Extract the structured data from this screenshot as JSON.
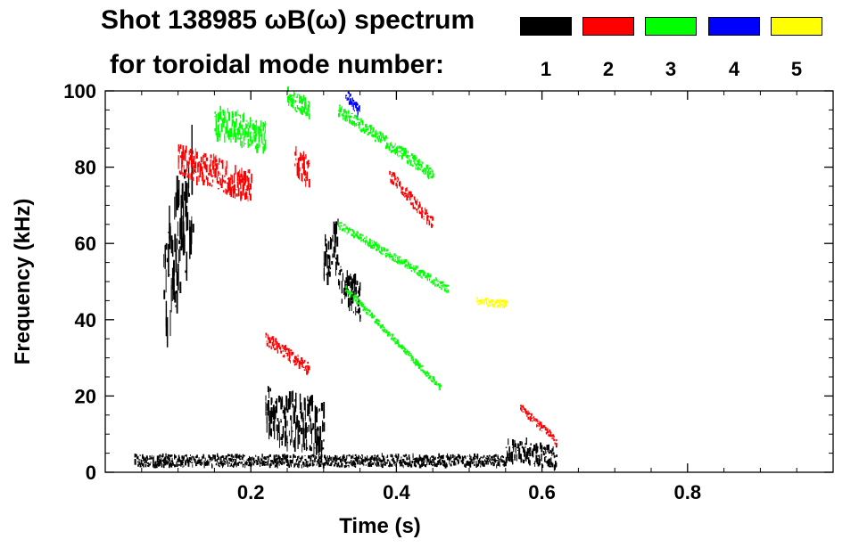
{
  "chart_data": {
    "type": "spectrogram",
    "title_line1": "Shot 138985 ωB(ω) spectrum",
    "title_line2": "for toroidal mode number:",
    "xlabel": "Time (s)",
    "ylabel": "Frequency (kHz)",
    "xlim": [
      0.0,
      1.0
    ],
    "ylim": [
      0,
      100
    ],
    "x_ticks": [
      "0.2",
      "0.4",
      "0.6",
      "0.8"
    ],
    "x_tick_values": [
      0.2,
      0.4,
      0.6,
      0.8
    ],
    "y_ticks": [
      "0",
      "20",
      "40",
      "60",
      "80",
      "100"
    ],
    "y_tick_values": [
      0,
      20,
      40,
      60,
      80,
      100
    ],
    "legend": [
      {
        "mode": "1",
        "color": "#000000"
      },
      {
        "mode": "2",
        "color": "#ff0000"
      },
      {
        "mode": "3",
        "color": "#00ff00"
      },
      {
        "mode": "4",
        "color": "#0000ff"
      },
      {
        "mode": "5",
        "color": "#ffff00"
      }
    ],
    "features": [
      {
        "mode": 1,
        "t_start": 0.08,
        "t_end": 0.12,
        "f_start": 45,
        "f_end": 75,
        "width_khz": 30
      },
      {
        "mode": 1,
        "t_start": 0.22,
        "t_end": 0.3,
        "f_start": 15,
        "f_end": 12,
        "width_khz": 14
      },
      {
        "mode": 1,
        "t_start": 0.3,
        "t_end": 0.32,
        "f_start": 55,
        "f_end": 60,
        "width_khz": 12
      },
      {
        "mode": 1,
        "t_start": 0.32,
        "t_end": 0.35,
        "f_start": 50,
        "f_end": 45,
        "width_khz": 10
      },
      {
        "mode": 1,
        "t_start": 0.55,
        "t_end": 0.62,
        "f_start": 6,
        "f_end": 4,
        "width_khz": 6
      },
      {
        "mode": 1,
        "t_start": 0.04,
        "t_end": 0.55,
        "f_start": 3,
        "f_end": 3,
        "width_khz": 3
      },
      {
        "mode": 2,
        "t_start": 0.1,
        "t_end": 0.2,
        "f_start": 82,
        "f_end": 75,
        "width_khz": 8
      },
      {
        "mode": 2,
        "t_start": 0.22,
        "t_end": 0.28,
        "f_start": 35,
        "f_end": 27,
        "width_khz": 3
      },
      {
        "mode": 2,
        "t_start": 0.26,
        "t_end": 0.28,
        "f_start": 82,
        "f_end": 78,
        "width_khz": 8
      },
      {
        "mode": 2,
        "t_start": 0.39,
        "t_end": 0.45,
        "f_start": 78,
        "f_end": 65,
        "width_khz": 3
      },
      {
        "mode": 2,
        "t_start": 0.57,
        "t_end": 0.62,
        "f_start": 17,
        "f_end": 8,
        "width_khz": 2
      },
      {
        "mode": 3,
        "t_start": 0.15,
        "t_end": 0.22,
        "f_start": 92,
        "f_end": 88,
        "width_khz": 8
      },
      {
        "mode": 3,
        "t_start": 0.25,
        "t_end": 0.28,
        "f_start": 98,
        "f_end": 95,
        "width_khz": 5
      },
      {
        "mode": 3,
        "t_start": 0.32,
        "t_end": 0.45,
        "f_start": 95,
        "f_end": 78,
        "width_khz": 3
      },
      {
        "mode": 3,
        "t_start": 0.32,
        "t_end": 0.47,
        "f_start": 65,
        "f_end": 48,
        "width_khz": 2
      },
      {
        "mode": 3,
        "t_start": 0.33,
        "t_end": 0.46,
        "f_start": 48,
        "f_end": 22,
        "width_khz": 1.5
      },
      {
        "mode": 4,
        "t_start": 0.33,
        "t_end": 0.35,
        "f_start": 99,
        "f_end": 94,
        "width_khz": 3
      },
      {
        "mode": 5,
        "t_start": 0.51,
        "t_end": 0.55,
        "f_start": 45,
        "f_end": 44,
        "width_khz": 2
      }
    ]
  }
}
